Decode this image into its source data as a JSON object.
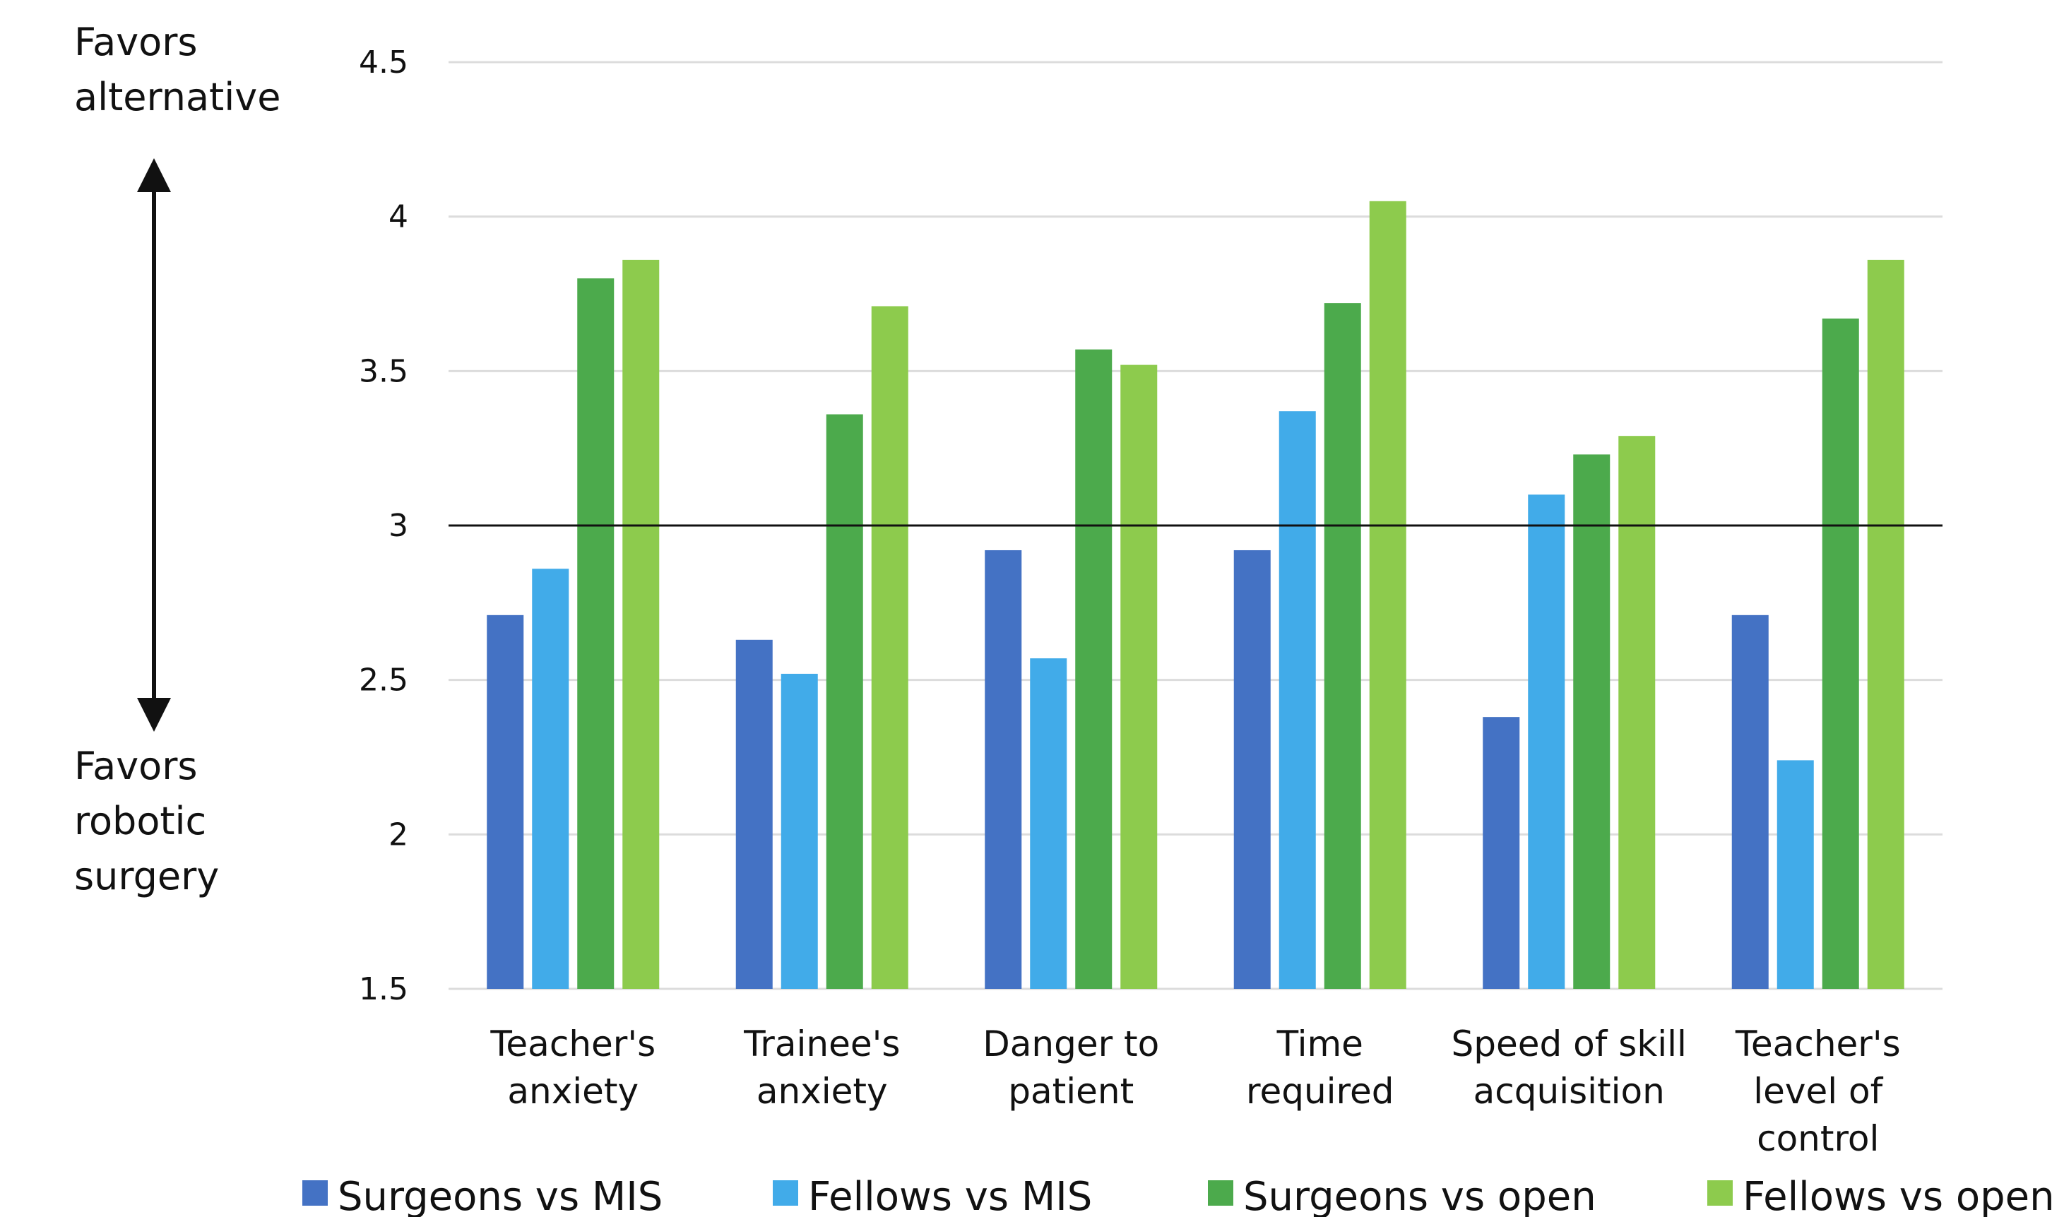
{
  "side_labels": {
    "top": [
      "Favors",
      "alternative"
    ],
    "bottom": [
      "Favors",
      "robotic",
      "surgery"
    ]
  },
  "chart_data": {
    "type": "bar",
    "title": "",
    "xlabel": "",
    "ylabel": "",
    "ylim": [
      1.5,
      4.5
    ],
    "yticks": [
      "1.5",
      "2",
      "2.5",
      "3",
      "3.5",
      "4",
      "4.5"
    ],
    "reference_line": 3,
    "grid": true,
    "legend_position": "bottom",
    "categories": [
      [
        "Teacher's",
        "anxiety"
      ],
      [
        "Trainee's",
        "anxiety"
      ],
      [
        "Danger to",
        "patient"
      ],
      [
        "Time",
        "required"
      ],
      [
        "Speed of skill",
        "acquisition"
      ],
      [
        "Teacher's",
        "level of",
        "control"
      ]
    ],
    "series": [
      {
        "name": "Surgeons vs MIS",
        "color": "#4472C4",
        "values": [
          2.71,
          2.63,
          2.92,
          2.92,
          2.38,
          2.71
        ]
      },
      {
        "name": "Fellows vs MIS",
        "color": "#41ABE9",
        "values": [
          2.86,
          2.52,
          2.57,
          3.37,
          3.1,
          2.24
        ]
      },
      {
        "name": "Surgeons vs open",
        "color": "#4CAA4C",
        "values": [
          3.8,
          3.36,
          3.57,
          3.72,
          3.23,
          3.67
        ]
      },
      {
        "name": "Fellows vs open",
        "color": "#8DCB4D",
        "values": [
          3.86,
          3.71,
          3.52,
          4.05,
          3.29,
          3.86
        ]
      }
    ]
  }
}
